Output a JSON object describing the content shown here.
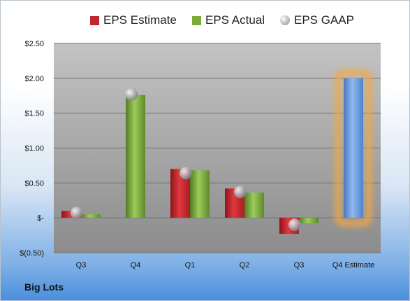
{
  "chart_data": {
    "type": "bar",
    "company": "Big Lots",
    "categories": [
      "Q3",
      "Q4",
      "Q1",
      "Q2",
      "Q3",
      "Q4 Estimate"
    ],
    "ylim": [
      -0.5,
      2.5
    ],
    "yticks": [
      "$2.50",
      "$2.00",
      "$1.50",
      "$1.00",
      "$0.50",
      "$-",
      "$(0.50)"
    ],
    "ytick_values": [
      2.5,
      2.0,
      1.5,
      1.0,
      0.5,
      0,
      -0.5
    ],
    "grid": true,
    "legend_position": "top",
    "series": [
      {
        "name": "EPS Estimate",
        "color": "#c0272d",
        "values": [
          0.1,
          null,
          0.7,
          0.42,
          -0.23,
          2.0
        ]
      },
      {
        "name": "EPS Actual",
        "color": "#7cab3c",
        "values": [
          0.05,
          1.76,
          0.68,
          0.36,
          -0.08,
          null
        ]
      },
      {
        "name": "EPS GAAP",
        "color": "#b9bcc2",
        "values": [
          0.07,
          1.77,
          0.64,
          0.37,
          -0.1,
          null
        ]
      }
    ],
    "highlight": {
      "category": "Q4 Estimate",
      "color": "#6a9de0",
      "glow": "#f4a742"
    }
  }
}
